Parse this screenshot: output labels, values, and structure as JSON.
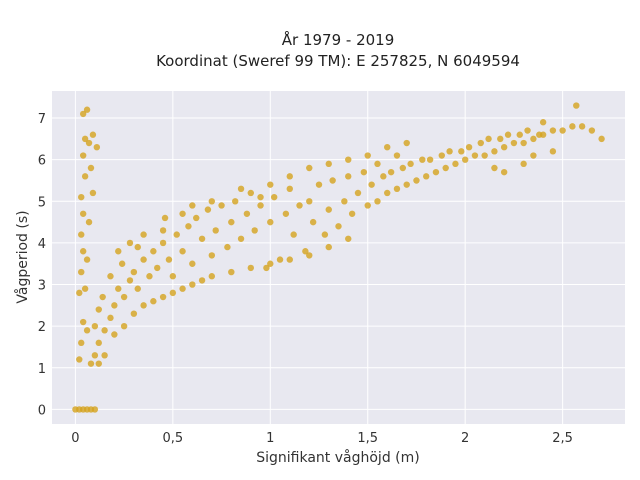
{
  "chart_data": {
    "type": "scatter",
    "title": "År 1979 - 2019",
    "subtitle": "Koordinat (Sweref 99 TM): E 257825, N 6049594",
    "xlabel": "Signifikant våghöjd (m)",
    "ylabel": "Vågperiod (s)",
    "xlim": [
      -0.12,
      2.82
    ],
    "ylim": [
      -0.35,
      7.65
    ],
    "x_ticks": [
      {
        "value": 0,
        "label": "0"
      },
      {
        "value": 0.5,
        "label": "0,5"
      },
      {
        "value": 1,
        "label": "1"
      },
      {
        "value": 1.5,
        "label": "1,5"
      },
      {
        "value": 2,
        "label": "2"
      },
      {
        "value": 2.5,
        "label": "2,5"
      }
    ],
    "y_ticks": [
      {
        "value": 0,
        "label": "0"
      },
      {
        "value": 1,
        "label": "1"
      },
      {
        "value": 2,
        "label": "2"
      },
      {
        "value": 3,
        "label": "3"
      },
      {
        "value": 4,
        "label": "4"
      },
      {
        "value": 5,
        "label": "5"
      },
      {
        "value": 6,
        "label": "6"
      },
      {
        "value": 7,
        "label": "7"
      }
    ],
    "grid": true,
    "marker_color": "#D4A21E",
    "plot_background": "#E8E8F0",
    "series": [
      {
        "points": [
          [
            0.0,
            0
          ],
          [
            0.02,
            0
          ],
          [
            0.04,
            0
          ],
          [
            0.06,
            0
          ],
          [
            0.08,
            0
          ],
          [
            0.1,
            0
          ],
          [
            0.02,
            1.2
          ],
          [
            0.03,
            1.6
          ],
          [
            0.04,
            2.1
          ],
          [
            0.02,
            2.8
          ],
          [
            0.03,
            3.3
          ],
          [
            0.04,
            3.8
          ],
          [
            0.03,
            4.2
          ],
          [
            0.04,
            4.7
          ],
          [
            0.03,
            5.1
          ],
          [
            0.05,
            5.6
          ],
          [
            0.04,
            6.1
          ],
          [
            0.05,
            6.5
          ],
          [
            0.04,
            7.1
          ],
          [
            0.06,
            7.2
          ],
          [
            0.07,
            6.4
          ],
          [
            0.08,
            5.8
          ],
          [
            0.09,
            6.6
          ],
          [
            0.11,
            6.3
          ],
          [
            0.09,
            5.2
          ],
          [
            0.07,
            4.5
          ],
          [
            0.06,
            3.6
          ],
          [
            0.05,
            2.9
          ],
          [
            0.06,
            1.9
          ],
          [
            0.08,
            1.1
          ],
          [
            0.1,
            1.3
          ],
          [
            0.12,
            1.6
          ],
          [
            0.1,
            2.0
          ],
          [
            0.15,
            1.9
          ],
          [
            0.12,
            2.4
          ],
          [
            0.18,
            2.2
          ],
          [
            0.14,
            2.7
          ],
          [
            0.2,
            2.5
          ],
          [
            0.22,
            2.9
          ],
          [
            0.18,
            3.2
          ],
          [
            0.25,
            2.7
          ],
          [
            0.28,
            3.1
          ],
          [
            0.24,
            3.5
          ],
          [
            0.3,
            3.3
          ],
          [
            0.32,
            2.9
          ],
          [
            0.35,
            3.6
          ],
          [
            0.38,
            3.2
          ],
          [
            0.4,
            3.8
          ],
          [
            0.42,
            3.4
          ],
          [
            0.45,
            4.0
          ],
          [
            0.48,
            3.6
          ],
          [
            0.5,
            3.2
          ],
          [
            0.52,
            4.2
          ],
          [
            0.55,
            3.8
          ],
          [
            0.58,
            4.4
          ],
          [
            0.6,
            3.5
          ],
          [
            0.62,
            4.6
          ],
          [
            0.65,
            4.1
          ],
          [
            0.68,
            4.8
          ],
          [
            0.7,
            3.7
          ],
          [
            0.72,
            4.3
          ],
          [
            0.75,
            4.9
          ],
          [
            0.78,
            3.9
          ],
          [
            0.8,
            4.5
          ],
          [
            0.82,
            5.0
          ],
          [
            0.85,
            4.1
          ],
          [
            0.88,
            4.7
          ],
          [
            0.9,
            5.2
          ],
          [
            0.92,
            4.3
          ],
          [
            0.95,
            4.9
          ],
          [
            0.98,
            3.4
          ],
          [
            1.0,
            4.5
          ],
          [
            1.02,
            5.1
          ],
          [
            1.05,
            3.6
          ],
          [
            1.08,
            4.7
          ],
          [
            1.1,
            5.3
          ],
          [
            1.12,
            4.2
          ],
          [
            1.15,
            4.9
          ],
          [
            1.18,
            3.8
          ],
          [
            1.2,
            5.0
          ],
          [
            1.22,
            4.5
          ],
          [
            1.25,
            5.4
          ],
          [
            1.28,
            4.2
          ],
          [
            1.3,
            4.8
          ],
          [
            1.32,
            5.5
          ],
          [
            1.35,
            4.4
          ],
          [
            1.38,
            5.0
          ],
          [
            1.4,
            5.6
          ],
          [
            1.42,
            4.7
          ],
          [
            1.45,
            5.2
          ],
          [
            1.48,
            5.7
          ],
          [
            1.5,
            4.9
          ],
          [
            1.52,
            5.4
          ],
          [
            1.55,
            5.0
          ],
          [
            1.58,
            5.6
          ],
          [
            1.6,
            5.2
          ],
          [
            1.62,
            5.7
          ],
          [
            1.65,
            5.3
          ],
          [
            1.68,
            5.8
          ],
          [
            1.7,
            5.4
          ],
          [
            1.72,
            5.9
          ],
          [
            1.75,
            5.5
          ],
          [
            1.78,
            6.0
          ],
          [
            1.8,
            5.6
          ],
          [
            1.82,
            6.0
          ],
          [
            1.85,
            5.7
          ],
          [
            1.88,
            6.1
          ],
          [
            1.9,
            5.8
          ],
          [
            1.92,
            6.2
          ],
          [
            1.95,
            5.9
          ],
          [
            1.98,
            6.2
          ],
          [
            2.0,
            6.0
          ],
          [
            2.02,
            6.3
          ],
          [
            2.05,
            6.1
          ],
          [
            2.08,
            6.4
          ],
          [
            2.1,
            6.1
          ],
          [
            2.12,
            6.5
          ],
          [
            2.15,
            6.2
          ],
          [
            2.18,
            6.5
          ],
          [
            2.2,
            6.3
          ],
          [
            2.22,
            6.6
          ],
          [
            2.25,
            6.4
          ],
          [
            2.28,
            6.6
          ],
          [
            2.3,
            6.4
          ],
          [
            2.32,
            6.7
          ],
          [
            2.35,
            6.5
          ],
          [
            2.38,
            6.6
          ],
          [
            2.4,
            6.6
          ],
          [
            2.45,
            6.7
          ],
          [
            2.5,
            6.7
          ],
          [
            2.55,
            6.8
          ],
          [
            2.6,
            6.8
          ],
          [
            2.65,
            6.7
          ],
          [
            2.7,
            6.5
          ],
          [
            2.57,
            7.3
          ],
          [
            2.4,
            6.9
          ],
          [
            2.3,
            5.9
          ],
          [
            2.35,
            6.1
          ],
          [
            2.15,
            5.8
          ],
          [
            2.2,
            5.7
          ],
          [
            2.45,
            6.2
          ],
          [
            0.12,
            1.1
          ],
          [
            0.15,
            1.3
          ],
          [
            0.2,
            1.8
          ],
          [
            0.25,
            2.0
          ],
          [
            0.3,
            2.3
          ],
          [
            0.35,
            2.5
          ],
          [
            0.4,
            2.6
          ],
          [
            0.45,
            2.7
          ],
          [
            0.5,
            2.8
          ],
          [
            0.55,
            2.9
          ],
          [
            0.6,
            3.0
          ],
          [
            0.65,
            3.1
          ],
          [
            0.7,
            3.2
          ],
          [
            0.8,
            3.3
          ],
          [
            0.9,
            3.4
          ],
          [
            1.0,
            3.5
          ],
          [
            1.1,
            3.6
          ],
          [
            1.2,
            3.7
          ],
          [
            1.3,
            3.9
          ],
          [
            1.4,
            4.1
          ],
          [
            0.22,
            3.8
          ],
          [
            0.28,
            4.0
          ],
          [
            0.35,
            4.2
          ],
          [
            0.46,
            4.6
          ],
          [
            0.55,
            4.7
          ],
          [
            0.7,
            5.0
          ],
          [
            0.85,
            5.3
          ],
          [
            1.0,
            5.4
          ],
          [
            1.1,
            5.6
          ],
          [
            1.2,
            5.8
          ],
          [
            1.4,
            6.0
          ],
          [
            1.5,
            6.1
          ],
          [
            1.6,
            6.3
          ],
          [
            1.7,
            6.4
          ],
          [
            0.95,
            5.1
          ],
          [
            0.6,
            4.9
          ],
          [
            0.45,
            4.3
          ],
          [
            0.32,
            3.9
          ],
          [
            1.3,
            5.9
          ],
          [
            1.55,
            5.9
          ],
          [
            1.65,
            6.1
          ]
        ]
      }
    ]
  }
}
